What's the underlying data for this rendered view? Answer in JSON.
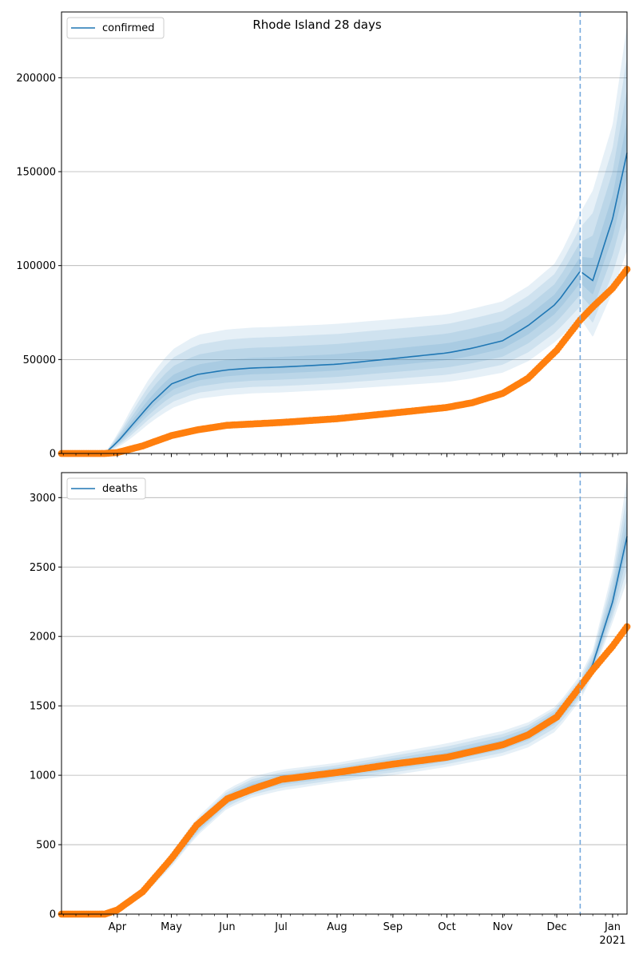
{
  "title": "Rhode Island 28 days",
  "chart_data": [
    {
      "type": "line",
      "legend": [
        "confirmed"
      ],
      "legend_position": "top-left",
      "grid": "y",
      "ylim": [
        0,
        235000
      ],
      "yticks": [
        0,
        50000,
        100000,
        150000,
        200000
      ],
      "ytick_labels": [
        "0",
        "50000",
        "100000",
        "150000",
        "200000"
      ],
      "forecast_start": "2020-12-14",
      "series": [
        {
          "name": "confirmed",
          "role": "model median",
          "x": [
            "2020-03-01",
            "2020-03-15",
            "2020-03-25",
            "2020-04-01",
            "2020-04-10",
            "2020-04-20",
            "2020-05-01",
            "2020-05-15",
            "2020-06-01",
            "2020-06-15",
            "2020-07-01",
            "2020-08-01",
            "2020-09-01",
            "2020-10-01",
            "2020-10-15",
            "2020-11-01",
            "2020-11-15",
            "2020-12-01",
            "2020-12-14",
            "2020-12-21",
            "2021-01-01",
            "2021-01-09"
          ],
          "values": [
            0,
            0,
            0,
            6000,
            16000,
            27000,
            37000,
            42000,
            44500,
            45500,
            46000,
            47500,
            50500,
            53500,
            56000,
            60000,
            68000,
            80000,
            97000,
            92000,
            125000,
            160000
          ],
          "band_outer_upper": [
            0,
            0,
            0,
            10000,
            26000,
            42000,
            55000,
            63000,
            66000,
            67000,
            67500,
            69000,
            71500,
            74000,
            77000,
            81000,
            89000,
            102000,
            128000,
            140000,
            175000,
            228000
          ],
          "band_outer_lower": [
            0,
            0,
            0,
            3000,
            9000,
            17000,
            24000,
            29000,
            31000,
            32000,
            32500,
            34000,
            36000,
            38000,
            40000,
            43000,
            49000,
            60000,
            72000,
            62000,
            86000,
            108000
          ]
        },
        {
          "name": "observed confirmed",
          "role": "observed points",
          "x": [
            "2020-03-01",
            "2020-03-25",
            "2020-04-01",
            "2020-04-15",
            "2020-05-01",
            "2020-05-15",
            "2020-06-01",
            "2020-07-01",
            "2020-08-01",
            "2020-09-01",
            "2020-10-01",
            "2020-10-15",
            "2020-11-01",
            "2020-11-15",
            "2020-12-01",
            "2020-12-14",
            "2020-12-21",
            "2021-01-01",
            "2021-01-09"
          ],
          "values": [
            0,
            0,
            500,
            4000,
            9500,
            12500,
            15000,
            16500,
            18500,
            21500,
            24500,
            27000,
            32000,
            40000,
            55000,
            71000,
            78000,
            88000,
            98000
          ]
        }
      ]
    },
    {
      "type": "line",
      "legend": [
        "deaths"
      ],
      "legend_position": "top-left",
      "grid": "y",
      "ylim": [
        0,
        3180
      ],
      "yticks": [
        0,
        500,
        1000,
        1500,
        2000,
        2500,
        3000
      ],
      "ytick_labels": [
        "0",
        "500",
        "1000",
        "1500",
        "2000",
        "2500",
        "3000"
      ],
      "forecast_start": "2020-12-14",
      "series": [
        {
          "name": "deaths",
          "role": "model median",
          "x": [
            "2020-03-01",
            "2020-03-25",
            "2020-04-01",
            "2020-04-15",
            "2020-05-01",
            "2020-05-15",
            "2020-06-01",
            "2020-06-15",
            "2020-07-01",
            "2020-08-01",
            "2020-09-01",
            "2020-10-01",
            "2020-11-01",
            "2020-11-15",
            "2020-12-01",
            "2020-12-14",
            "2020-12-21",
            "2021-01-01",
            "2021-01-09"
          ],
          "values": [
            0,
            0,
            30,
            160,
            390,
            620,
            830,
            920,
            970,
            1020,
            1080,
            1140,
            1230,
            1300,
            1430,
            1620,
            1800,
            2250,
            2720
          ],
          "band_outer_upper": [
            0,
            0,
            40,
            190,
            440,
            690,
            900,
            990,
            1040,
            1090,
            1160,
            1230,
            1320,
            1380,
            1500,
            1720,
            1900,
            2480,
            3130
          ],
          "band_outer_lower": [
            0,
            0,
            20,
            130,
            340,
            560,
            760,
            840,
            890,
            950,
            1000,
            1060,
            1140,
            1200,
            1320,
            1540,
            1720,
            2100,
            2400
          ]
        },
        {
          "name": "observed deaths",
          "role": "observed points",
          "x": [
            "2020-03-01",
            "2020-03-25",
            "2020-04-01",
            "2020-04-15",
            "2020-05-01",
            "2020-05-15",
            "2020-06-01",
            "2020-06-15",
            "2020-07-01",
            "2020-08-01",
            "2020-09-01",
            "2020-10-01",
            "2020-11-01",
            "2020-11-15",
            "2020-12-01",
            "2020-12-14",
            "2020-12-21",
            "2021-01-01",
            "2021-01-09"
          ],
          "values": [
            0,
            0,
            30,
            160,
            400,
            640,
            830,
            900,
            970,
            1020,
            1080,
            1130,
            1220,
            1290,
            1420,
            1640,
            1760,
            1930,
            2070
          ]
        }
      ]
    }
  ],
  "x_axis": {
    "range": [
      "2020-03-01",
      "2021-01-09"
    ],
    "month_ticks": [
      {
        "date": "2020-04-01",
        "label": "Apr"
      },
      {
        "date": "2020-05-01",
        "label": "May"
      },
      {
        "date": "2020-06-01",
        "label": "Jun"
      },
      {
        "date": "2020-07-01",
        "label": "Jul"
      },
      {
        "date": "2020-08-01",
        "label": "Aug"
      },
      {
        "date": "2020-09-01",
        "label": "Sep"
      },
      {
        "date": "2020-10-01",
        "label": "Oct"
      },
      {
        "date": "2020-11-01",
        "label": "Nov"
      },
      {
        "date": "2020-12-01",
        "label": "Dec"
      },
      {
        "date": "2021-01-01",
        "label": "Jan"
      }
    ],
    "year_label": "2021"
  },
  "colors": {
    "median": "#1f77b4",
    "band": "#1f77b4",
    "observed": "#ff7f0e",
    "vline": "#77aadd",
    "grid": "#b0b0b0"
  }
}
